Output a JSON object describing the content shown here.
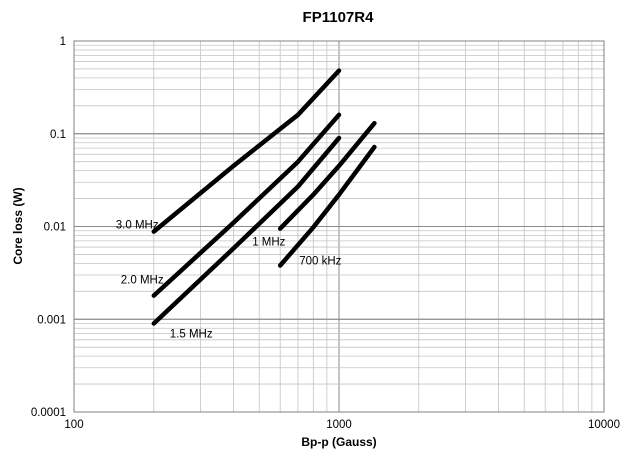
{
  "chart_data": {
    "type": "line",
    "title": "FP1107R4",
    "xlabel": "Bp-p (Gauss)",
    "ylabel": "Core loss (W)",
    "xscale": "log",
    "yscale": "log",
    "xlim": [
      100,
      10000
    ],
    "ylim": [
      0.0001,
      1
    ],
    "grid": true,
    "x_ticks": [
      "100",
      "1000",
      "10000"
    ],
    "y_ticks": [
      "1",
      "0.1",
      "0.01",
      "0.001",
      "0.0001"
    ],
    "series": [
      {
        "name": "3.0 MHz",
        "x": [
          200,
          400,
          700,
          1000
        ],
        "y": [
          0.0088,
          0.045,
          0.16,
          0.48
        ]
      },
      {
        "name": "2.0 MHz",
        "x": [
          200,
          400,
          700,
          1000
        ],
        "y": [
          0.0018,
          0.011,
          0.05,
          0.16
        ]
      },
      {
        "name": "1.5 MHz",
        "x": [
          200,
          400,
          700,
          1000
        ],
        "y": [
          0.0009,
          0.0058,
          0.027,
          0.09
        ]
      },
      {
        "name": "1 MHz",
        "x": [
          600,
          800,
          1000,
          1360
        ],
        "y": [
          0.0095,
          0.022,
          0.045,
          0.13
        ]
      },
      {
        "name": "700 kHz",
        "x": [
          600,
          800,
          1000,
          1360
        ],
        "y": [
          0.0038,
          0.0098,
          0.022,
          0.072
        ]
      }
    ]
  }
}
